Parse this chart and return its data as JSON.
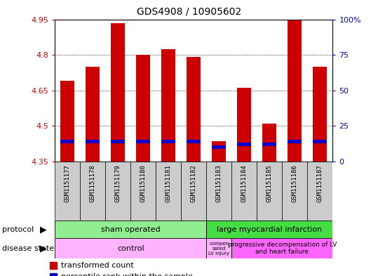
{
  "title": "GDS4908 / 10905602",
  "samples": [
    "GSM1151177",
    "GSM1151178",
    "GSM1151179",
    "GSM1151180",
    "GSM1151181",
    "GSM1151182",
    "GSM1151183",
    "GSM1151184",
    "GSM1151185",
    "GSM1151186",
    "GSM1151187"
  ],
  "transformed_counts": [
    4.69,
    4.75,
    4.935,
    4.8,
    4.825,
    4.79,
    4.435,
    4.66,
    4.51,
    4.945,
    4.75
  ],
  "percentile_ranks": [
    14,
    14,
    14,
    14,
    14,
    14,
    10,
    12,
    12,
    14,
    14
  ],
  "ylim_left": [
    4.35,
    4.95
  ],
  "ylim_right": [
    0,
    100
  ],
  "right_ticks": [
    0,
    25,
    50,
    75,
    100
  ],
  "right_tick_labels": [
    "0",
    "25",
    "50",
    "75",
    "100%"
  ],
  "left_ticks": [
    4.35,
    4.5,
    4.65,
    4.8,
    4.95
  ],
  "bar_color_red": "#cc0000",
  "bar_color_blue": "#0000cc",
  "bar_width": 0.55,
  "protocol_sham_color": "#90EE90",
  "protocol_lmi_color": "#44DD44",
  "disease_control_color": "#FFB3FF",
  "disease_comp_color": "#FFB3FF",
  "disease_prog_color": "#FF66FF",
  "xtick_bg": "#cccccc",
  "grid_dotted_color": "#000000",
  "bg_color": "#ffffff",
  "axis_color_left": "#cc0000",
  "axis_color_right": "#0000cc"
}
